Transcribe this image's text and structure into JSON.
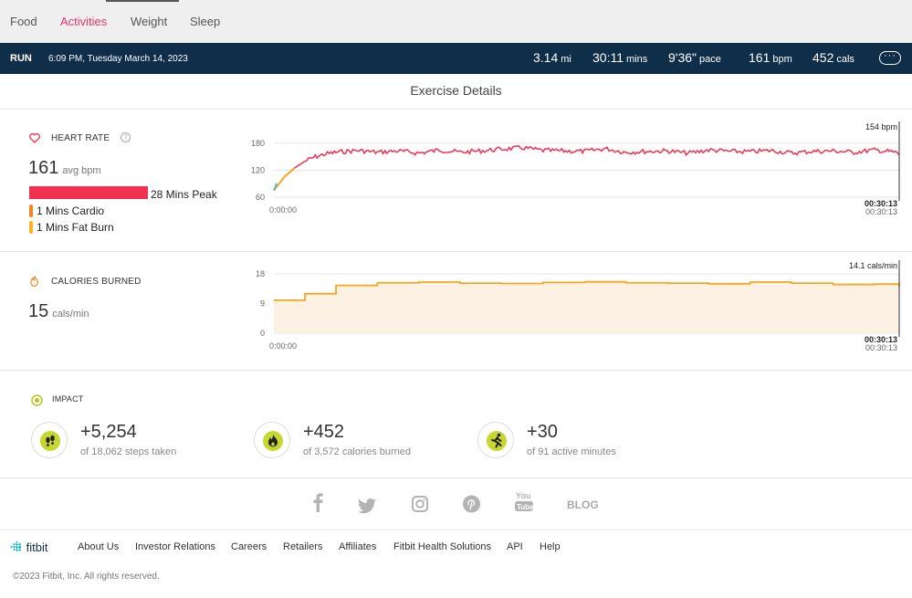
{
  "nav": {
    "tabs": [
      {
        "label": "Food"
      },
      {
        "label": "Activities"
      },
      {
        "label": "Weight"
      },
      {
        "label": "Sleep"
      }
    ],
    "active_tab": "Activities"
  },
  "run": {
    "type": "RUN",
    "datetime": "6:09 PM, Tuesday March 14, 2023",
    "distance": {
      "value": "3.14",
      "unit": "mi"
    },
    "duration": {
      "value": "30:11",
      "unit": "mins"
    },
    "pace": {
      "value": "9'36\"",
      "unit": "pace"
    },
    "heart": {
      "value": "161",
      "unit": "bpm"
    },
    "calories": {
      "value": "452",
      "unit": "cals"
    },
    "more_label": "···"
  },
  "exercise_details": {
    "title": "Exercise Details"
  },
  "heart_rate": {
    "title": "HEART RATE",
    "help": "?",
    "avg_value": "161",
    "avg_unit": "avg bpm",
    "zones": [
      {
        "label": "28 Mins Peak",
        "color": "#f2304f"
      },
      {
        "label": "1 Mins Cardio",
        "color": "#f5831f"
      },
      {
        "label": "1 Mins Fat Burn",
        "color": "#fbb521"
      }
    ]
  },
  "calories_burned": {
    "title": "CALORIES BURNED",
    "value": "15",
    "unit": "cals/min"
  },
  "chart_data": [
    {
      "type": "line",
      "name": "heart-rate",
      "yticks": [
        180,
        120,
        60
      ],
      "ylim": [
        60,
        190
      ],
      "x_start_label": "0:00:00",
      "x_end_label": "00:30:13",
      "x_end_label_repeat": "00:30:13",
      "end_value_label": "154 bpm",
      "color": "#f2304f",
      "x_minutes": [
        0,
        0.5,
        1,
        1.5,
        2,
        2.5,
        3,
        4,
        5,
        6,
        7,
        8,
        9,
        10,
        11,
        12,
        13,
        14,
        15,
        16,
        17,
        18,
        19,
        20,
        21,
        22,
        23,
        24,
        25,
        26,
        27,
        28,
        29,
        30,
        30.2
      ],
      "values": [
        75,
        105,
        125,
        140,
        150,
        156,
        160,
        164,
        160,
        163,
        158,
        165,
        160,
        163,
        167,
        170,
        164,
        163,
        162,
        168,
        160,
        162,
        163,
        158,
        165,
        162,
        161,
        164,
        158,
        162,
        163,
        160,
        165,
        160,
        154
      ]
    },
    {
      "type": "area",
      "name": "calories",
      "yticks": [
        18,
        9,
        0
      ],
      "ylim": [
        0,
        18
      ],
      "x_start_label": "0:00:00",
      "x_end_label": "00:30:13",
      "x_end_label_repeat": "00:30:13",
      "end_value_label": "14.1 cals/min",
      "color": "#f5a623",
      "x_minutes": [
        0,
        1.5,
        3,
        5,
        7,
        9,
        11,
        13,
        15,
        17,
        19,
        21,
        23,
        25,
        27,
        29,
        30.2
      ],
      "values": [
        10,
        12,
        14.5,
        15.3,
        15.5,
        15.2,
        15.1,
        15.4,
        15.6,
        15.3,
        15.2,
        15.0,
        15.5,
        15.2,
        14.8,
        14.9,
        14.1
      ]
    }
  ],
  "impact": {
    "title": "IMPACT",
    "items": [
      {
        "value": "+5,254",
        "sub": "of 18,062 steps taken",
        "icon": "footsteps-icon"
      },
      {
        "value": "+452",
        "sub": "of 3,572 calories burned",
        "icon": "flame-icon"
      },
      {
        "value": "+30",
        "sub": "of 91 active minutes",
        "icon": "runner-icon"
      }
    ]
  },
  "social": {
    "blog_label": "BLOG"
  },
  "footer": {
    "logo": "fitbit",
    "links": [
      "About Us",
      "Investor Relations",
      "Careers",
      "Retailers",
      "Affiliates",
      "Fitbit Health Solutions",
      "API",
      "Help"
    ],
    "copyright": "©2023 Fitbit, Inc. All rights reserved."
  }
}
